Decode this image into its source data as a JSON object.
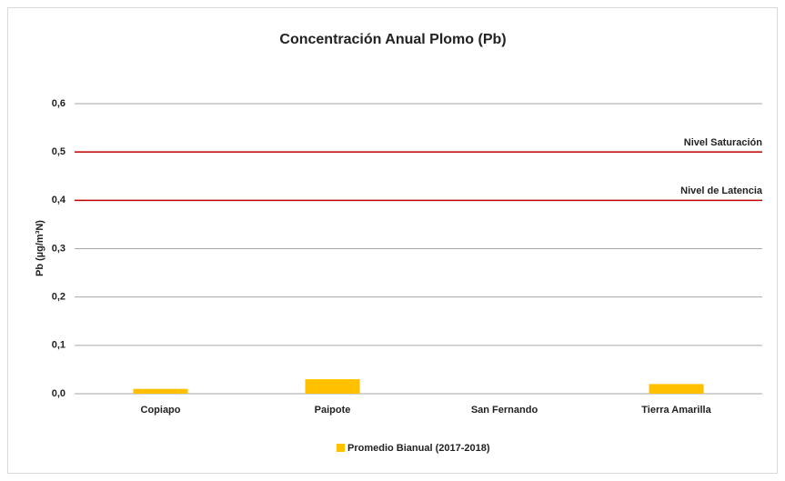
{
  "chart_data": {
    "type": "bar",
    "title": "Concentración Anual Plomo (Pb)",
    "y_label": "Pb (µg/m³N)",
    "categories": [
      "Copiapo",
      "Paipote",
      "San Fernando",
      "Tierra Amarilla"
    ],
    "series": [
      {
        "name": "Promedio Bianual (2017-2018)",
        "color": "#ffc000",
        "values": [
          0.01,
          0.03,
          null,
          0.02
        ]
      }
    ],
    "ylim": [
      0,
      0.6
    ],
    "yticks": [
      {
        "value": 0,
        "label": "0,0"
      },
      {
        "value": 0.1,
        "label": "0,1"
      },
      {
        "value": 0.2,
        "label": "0,2"
      },
      {
        "value": 0.3,
        "label": "0,3"
      },
      {
        "value": 0.4,
        "label": "0,4"
      },
      {
        "value": 0.5,
        "label": "0,5"
      },
      {
        "value": 0.6,
        "label": "0,6"
      }
    ],
    "grid": true,
    "reference_lines": [
      {
        "value": 0.5,
        "label": "Nivel Saturación",
        "color": "#c00000"
      },
      {
        "value": 0.4,
        "label": "Nivel de Latencia",
        "color": "#c00000"
      }
    ],
    "legend": "bottom"
  }
}
